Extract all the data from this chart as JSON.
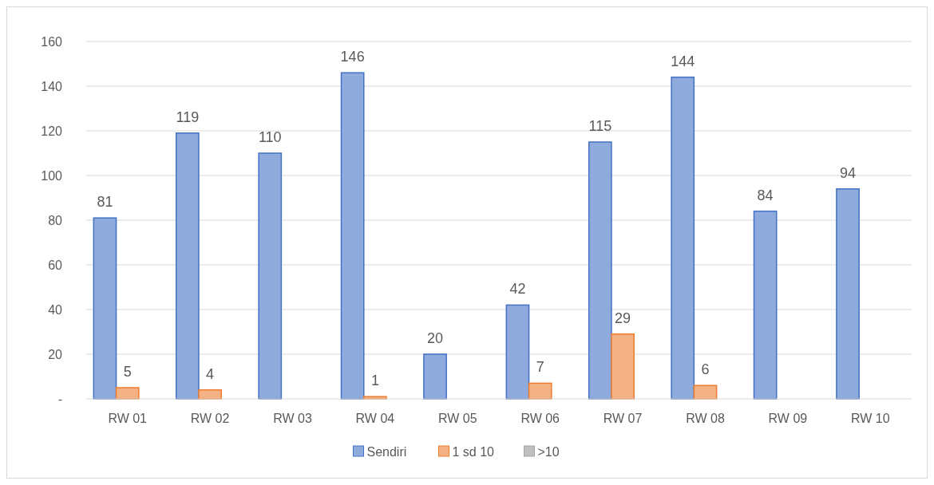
{
  "chart_data": {
    "type": "bar",
    "categories": [
      "RW 01",
      "RW 02",
      "RW 03",
      "RW 04",
      "RW 05",
      "RW 06",
      "RW 07",
      "RW 08",
      "RW 09",
      "RW 10"
    ],
    "series": [
      {
        "name": "Sendiri",
        "color": "#8faadc",
        "values": [
          81,
          119,
          110,
          146,
          20,
          42,
          115,
          144,
          84,
          94
        ],
        "value_labels": [
          "81",
          "119",
          "110",
          "146",
          "20",
          "42",
          "115",
          "144",
          "84",
          "94"
        ]
      },
      {
        "name": "1 sd 10",
        "color": "#f4b183",
        "values": [
          5,
          4,
          0,
          1,
          0,
          7,
          29,
          6,
          0,
          0
        ],
        "value_labels": [
          "5",
          "4",
          null,
          "1",
          null,
          "7",
          "29",
          "6",
          null,
          null
        ]
      },
      {
        "name": ">10",
        "color": "#bfbfbf",
        "values": [
          0,
          0,
          0,
          0,
          0,
          0,
          0,
          0,
          0,
          0
        ],
        "value_labels": [
          null,
          null,
          null,
          null,
          null,
          null,
          null,
          null,
          null,
          null
        ]
      }
    ],
    "ylim": [
      0,
      160
    ],
    "yticks": [
      {
        "value": 0,
        "label": "-"
      },
      20,
      40,
      60,
      80,
      100,
      120,
      140,
      160
    ],
    "grid": "y",
    "legend": "bottom"
  }
}
